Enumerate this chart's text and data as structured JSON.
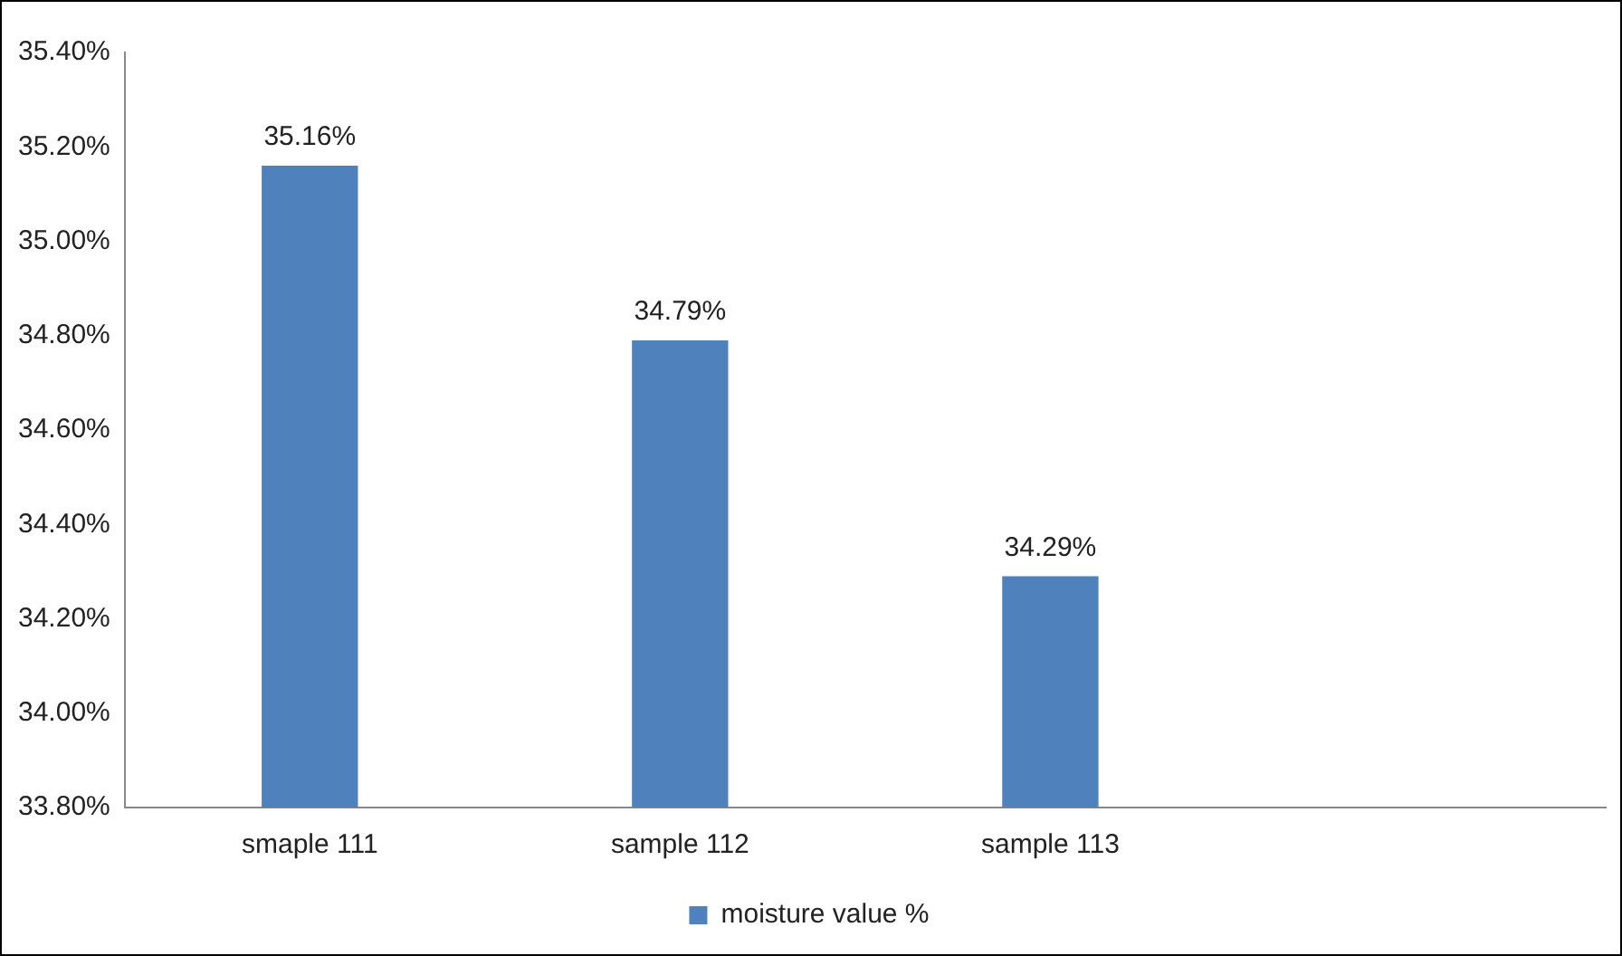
{
  "chart_data": {
    "type": "bar",
    "categories": [
      "smaple 111",
      "sample 112",
      "sample 113",
      null
    ],
    "series": [
      {
        "name": "moisture value %",
        "color": "#4f81bd",
        "values": [
          35.16,
          34.79,
          34.29,
          null
        ],
        "value_labels": [
          "35.16%",
          "34.79%",
          "34.29%",
          null
        ]
      }
    ],
    "ylim": [
      33.8,
      35.4
    ],
    "yticks": [
      {
        "value": 33.8,
        "label": "33.80%"
      },
      {
        "value": 34.0,
        "label": "34.00%"
      },
      {
        "value": 34.2,
        "label": "34.20%"
      },
      {
        "value": 34.4,
        "label": "34.40%"
      },
      {
        "value": 34.6,
        "label": "34.60%"
      },
      {
        "value": 34.8,
        "label": "34.80%"
      },
      {
        "value": 35.0,
        "label": "35.00%"
      },
      {
        "value": 35.2,
        "label": "35.20%"
      },
      {
        "value": 35.4,
        "label": "35.40%"
      }
    ],
    "grid": false,
    "legend": "bottom"
  }
}
